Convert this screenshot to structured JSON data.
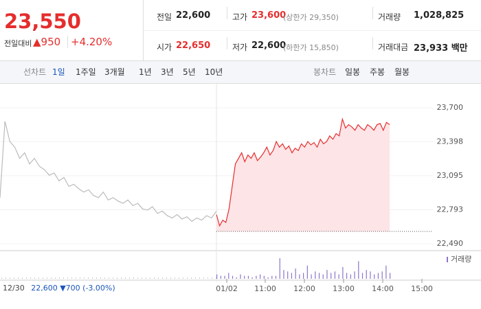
{
  "header": {
    "price": "23,550",
    "change_label": "전일대비",
    "change": "950",
    "change_pct": "+4.20%",
    "stats": [
      {
        "label": "전일",
        "value": "22,600"
      },
      {
        "label": "고가",
        "value": "23,600",
        "note": "(상한가 29,350)"
      },
      {
        "label": "거래량",
        "value": "1,028,825"
      },
      {
        "label": "시가",
        "value": "22,650"
      },
      {
        "label": "저가",
        "value": "22,600",
        "note": "(하한가 15,850)"
      },
      {
        "label": "거래대금",
        "value": "23,933 백만"
      }
    ]
  },
  "tabs": {
    "line_label": "선차트",
    "line": [
      "1일",
      "1주일",
      "3개월",
      "1년",
      "3년",
      "5년",
      "10년"
    ],
    "candle_label": "봉차트",
    "candle": [
      "일봉",
      "주봉",
      "월봉"
    ]
  },
  "footer": {
    "date": "12/30",
    "price": "22,600",
    "change": "▼700",
    "pct": "(-3.00%)"
  },
  "chart_data": {
    "type": "line",
    "ylim": [
      22490,
      23700
    ],
    "yticks": [
      {
        "value": 22490,
        "label": "22,490"
      },
      {
        "value": 22793,
        "label": "22,793"
      },
      {
        "value": 23095,
        "label": "23,095"
      },
      {
        "value": 23398,
        "label": "23,398"
      },
      {
        "value": 23700,
        "label": "23,700"
      }
    ],
    "xticks": [
      "01/02",
      "11:00",
      "12:00",
      "13:00",
      "14:00",
      "15:00"
    ],
    "reference_line": 22600,
    "series": [
      {
        "color": "#bbbbbb",
        "values": [
          22900,
          23580,
          23400,
          23350,
          23250,
          23300,
          23200,
          23250,
          23180,
          23150,
          23100,
          23120,
          23050,
          23080,
          23000,
          23020,
          22980,
          22950,
          22970,
          22920,
          22900,
          22950,
          22880,
          22900,
          22870,
          22850,
          22880,
          22830,
          22850,
          22800,
          22790,
          22820,
          22760,
          22780,
          22740,
          22720,
          22750,
          22710,
          22730,
          22690,
          22720,
          22700,
          22740,
          22720,
          22780
        ]
      },
      {
        "color": "#e52d2d",
        "values": [
          22750,
          22650,
          22700,
          22680,
          22800,
          23000,
          23200,
          23250,
          23300,
          23220,
          23280,
          23250,
          23300,
          23230,
          23260,
          23300,
          23350,
          23280,
          23320,
          23400,
          23350,
          23380,
          23330,
          23360,
          23300,
          23340,
          23320,
          23380,
          23350,
          23400,
          23370,
          23390,
          23350,
          23420,
          23380,
          23400,
          23450,
          23420,
          23470,
          23450,
          23600,
          23520,
          23550,
          23530,
          23500,
          23550,
          23520,
          23500,
          23550,
          23530,
          23500,
          23550,
          23560,
          23500,
          23570,
          23550
        ]
      }
    ],
    "volume_label": "거래량",
    "volume": [
      3,
      2,
      2,
      4,
      2,
      1,
      3,
      2,
      2,
      1,
      2,
      3,
      2,
      1,
      2,
      2,
      14,
      6,
      5,
      4,
      7,
      3,
      4,
      9,
      3,
      5,
      4,
      3,
      6,
      4,
      5,
      3,
      8,
      4,
      3,
      5,
      12,
      4,
      6,
      5,
      3,
      4,
      5,
      9,
      4
    ]
  }
}
